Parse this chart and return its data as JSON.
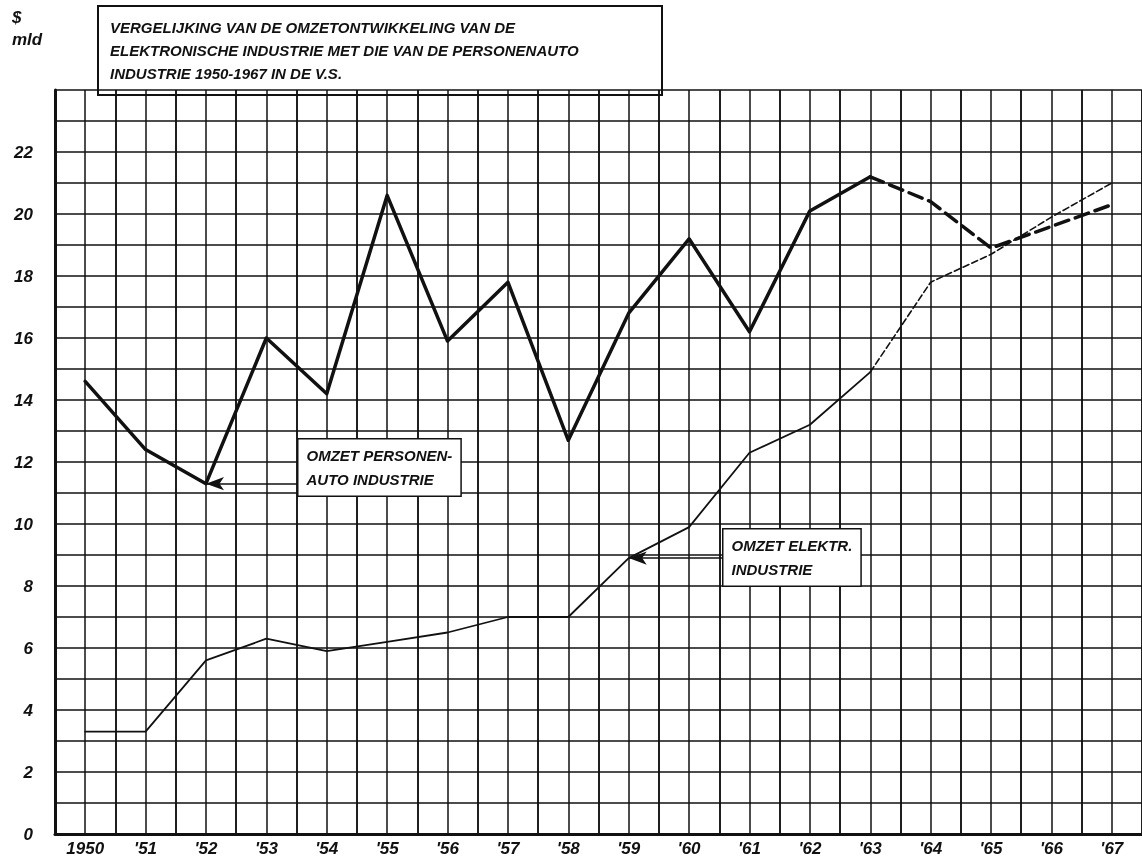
{
  "chart_data": {
    "type": "line",
    "title": "VERGELIJKING VAN DE OMZETONTWIKKELING VAN DE ELEKTRONISCHE INDUSTRIE MET DIE VAN DE PERSONENAUTO INDUSTRIE 1950-1967 IN DE V.S.",
    "ylabel": "$ mld",
    "categories": [
      "1950",
      "'51",
      "'52",
      "'53",
      "'54",
      "'55",
      "'56",
      "'57",
      "'58",
      "'59",
      "'60",
      "'61",
      "'62",
      "'63",
      "'64",
      "'65",
      "'66",
      "'67"
    ],
    "series": [
      {
        "color": "#111111",
        "line_style": "solid",
        "values": [
          14.6,
          12.4,
          11.3,
          16.0,
          14.2,
          20.6,
          15.9,
          17.8,
          12.7,
          16.8,
          19.2,
          16.2,
          20.1,
          21.2,
          null,
          null,
          null,
          null
        ]
      },
      {
        "color": "#111111",
        "line_style": "dashed",
        "values": [
          null,
          null,
          null,
          null,
          null,
          null,
          null,
          null,
          null,
          null,
          null,
          null,
          null,
          21.2,
          20.4,
          18.9,
          19.6,
          20.3
        ]
      },
      {
        "color": "#111111",
        "line_style": "solid",
        "values": [
          3.3,
          3.3,
          5.6,
          6.3,
          5.9,
          6.2,
          6.5,
          7.0,
          7.0,
          8.9,
          9.9,
          12.3,
          13.2,
          14.9,
          null,
          null,
          null,
          null
        ]
      },
      {
        "color": "#111111",
        "line_style": "dashed",
        "values": [
          null,
          null,
          null,
          null,
          null,
          null,
          null,
          null,
          null,
          null,
          null,
          null,
          null,
          14.9,
          17.8,
          18.7,
          19.9,
          21.0
        ]
      }
    ],
    "annotations": [
      {
        "text": "OMZET PERSONEN-\nAUTO INDUSTRIE",
        "x": "'52",
        "y": 11.3
      },
      {
        "text": "OMZET ELEKTR.\nINDUSTRIE",
        "x": "'59",
        "y": 8.9
      }
    ],
    "ylim": [
      0,
      24
    ],
    "yticks": [
      0,
      2,
      4,
      6,
      8,
      10,
      12,
      14,
      16,
      18,
      20,
      22
    ],
    "grid": true,
    "marker": "none"
  }
}
